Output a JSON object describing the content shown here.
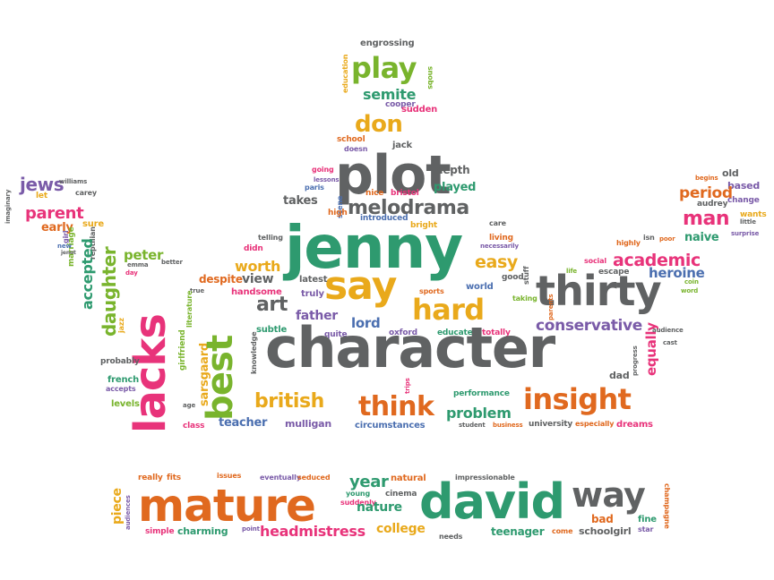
{
  "words": [
    "engrossing",
    "play",
    "semite",
    "cooper",
    "education",
    "snobs",
    "don",
    "sudden",
    "school",
    "jack",
    "doesn",
    "plot",
    "depth",
    "going",
    "paris",
    "lessons",
    "played",
    "nice",
    "bristol",
    "scene",
    "jews",
    "williams",
    "let",
    "carey",
    "parent",
    "sure",
    "early",
    "girl",
    "marriage",
    "new",
    "jenot",
    "reptilian",
    "takes",
    "high",
    "melodrama",
    "care",
    "imaginary",
    "telling",
    "didn",
    "introduced",
    "bright",
    "living",
    "necessarily",
    "jenny",
    "begins",
    "old",
    "based",
    "period",
    "change",
    "man",
    "wants",
    "audrey",
    "little",
    "surprise",
    "naive",
    "highly",
    "isn",
    "poor",
    "social",
    "coin",
    "peter",
    "emma",
    "better",
    "day",
    "worth",
    "easy",
    "academic",
    "escape",
    "heroine",
    "lacks",
    "daughter",
    "accepted",
    "say",
    "despite",
    "view",
    "truly",
    "latest",
    "sports",
    "world",
    "good",
    "taking",
    "stuff",
    "life",
    "true",
    "handsome",
    "thirty",
    "word",
    "art",
    "hard",
    "father",
    "lord",
    "jazz",
    "literature",
    "conservative",
    "parents",
    "equally",
    "audience",
    "cast",
    "subtle",
    "quite",
    "oxford",
    "educated",
    "totally",
    "probably",
    "girlfriend",
    "knowledge",
    "character",
    "sarsgaard",
    "best",
    "progress",
    "dad",
    "french",
    "accepts",
    "trips",
    "performance",
    "british",
    "think",
    "insight",
    "levels",
    "age",
    "problem",
    "teacher",
    "mulligan",
    "circumstances",
    "student",
    "business",
    "university",
    "especially",
    "dreams",
    "class",
    "really",
    "fits",
    "issues",
    "eventually",
    "seduced",
    "impressionable",
    "year",
    "natural",
    "champagne",
    "mature",
    "young",
    "cinema",
    "david",
    "way",
    "piece",
    "suddenly",
    "nature",
    "bad",
    "fine",
    "audiences",
    "simple",
    "charming",
    "point",
    "headmistress",
    "college",
    "teenager",
    "come",
    "schoolgirl",
    "needs",
    "star"
  ]
}
